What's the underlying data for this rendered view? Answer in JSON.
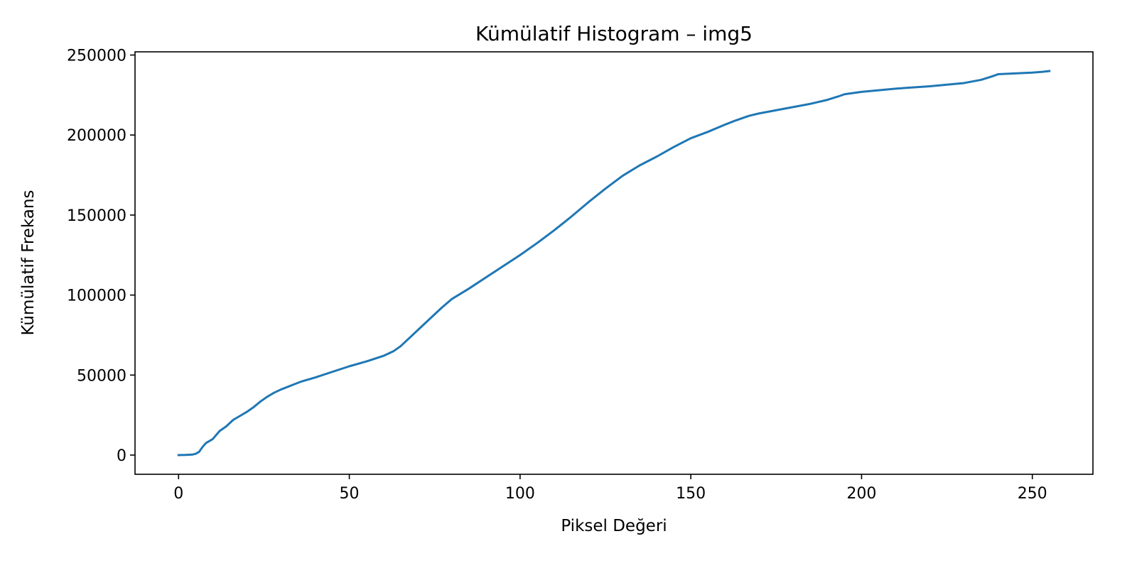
{
  "chart_data": {
    "type": "line",
    "title": "Kümülatif Histogram – img5",
    "xlabel": "Piksel Değeri",
    "ylabel": "Kümülatif Frekans",
    "xlim": [
      -12.75,
      267.75
    ],
    "ylim": [
      -12000,
      252000
    ],
    "xticks": [
      0,
      50,
      100,
      150,
      200,
      250
    ],
    "yticks": [
      0,
      50000,
      100000,
      150000,
      200000,
      250000
    ],
    "grid": false,
    "legend": "none",
    "series": [
      {
        "color": "#1f77b4",
        "x": [
          0,
          2,
          4,
          5,
          6,
          7,
          8,
          10,
          12,
          14,
          16,
          18,
          20,
          22,
          24,
          26,
          28,
          30,
          33,
          36,
          40,
          45,
          50,
          55,
          60,
          63,
          65,
          68,
          71,
          74,
          77,
          80,
          85,
          90,
          95,
          100,
          105,
          110,
          115,
          120,
          125,
          130,
          135,
          140,
          145,
          150,
          155,
          160,
          163,
          167,
          170,
          175,
          180,
          185,
          190,
          193,
          195,
          200,
          205,
          210,
          220,
          230,
          235,
          238,
          240,
          245,
          250,
          253,
          255
        ],
        "y": [
          0,
          100,
          300,
          800,
          2000,
          5000,
          7500,
          10000,
          15000,
          18000,
          22000,
          24500,
          27000,
          30000,
          33500,
          36500,
          39000,
          41000,
          43500,
          46000,
          48500,
          52000,
          55500,
          58500,
          62000,
          65000,
          68000,
          74000,
          80000,
          86000,
          92000,
          97500,
          104000,
          111000,
          118000,
          125000,
          132500,
          140500,
          149000,
          158000,
          166500,
          174500,
          181000,
          186500,
          192500,
          198000,
          202000,
          206500,
          209000,
          212000,
          213500,
          215500,
          217500,
          219500,
          222000,
          224000,
          225500,
          227000,
          228000,
          229000,
          230500,
          232500,
          234500,
          236500,
          238000,
          238500,
          239000,
          239500,
          240000
        ]
      }
    ]
  }
}
